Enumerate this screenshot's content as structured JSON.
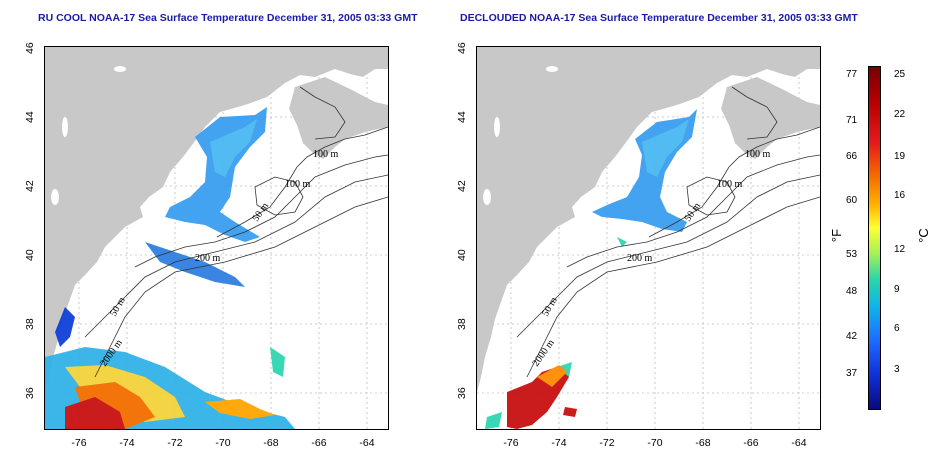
{
  "titles": {
    "left": "RU COOL NOAA-17 Sea Surface Temperature December 31, 2005 03:33 GMT",
    "right": "DECLOUDED NOAA-17 Sea Surface Temperature December 31, 2005 03:33 GMT"
  },
  "x_ticks": [
    "-76",
    "-74",
    "-72",
    "-70",
    "-68",
    "-66",
    "-64"
  ],
  "y_ticks": [
    "46",
    "44",
    "42",
    "40",
    "38",
    "36"
  ],
  "contour_labels": {
    "left": [
      "100 m",
      "100 m",
      "50 m",
      "200 m",
      "50 m",
      "2000 m"
    ],
    "right": [
      "100 m",
      "100 m",
      "50 m",
      "200 m",
      "50 m",
      "2000 m"
    ]
  },
  "colorbar": {
    "fahrenheit": [
      "77",
      "71",
      "66",
      "60",
      "53",
      "48",
      "42",
      "37"
    ],
    "celsius": [
      "25",
      "22",
      "19",
      "16",
      "12",
      "9",
      "6",
      "3"
    ],
    "unit_f": "°F",
    "unit_c": "°C"
  },
  "colors": {
    "land": "#c8c8c8",
    "title": "#1a1aa6"
  }
}
